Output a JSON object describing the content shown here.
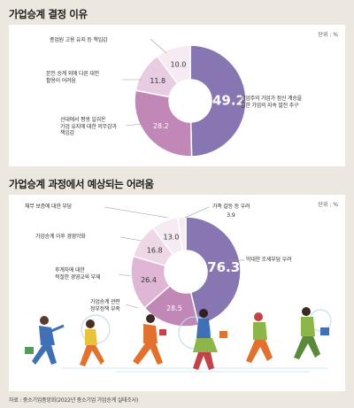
{
  "chart_data": [
    {
      "type": "pie",
      "title": "가업승계 결정 이유",
      "unit": "단위 : %",
      "slices": [
        {
          "label": "창업주의 가업가 정신 계승을 통한 가업의 지속 발전 추구",
          "label_lines": [
            "창업주의 가업가 정신 계승을",
            "통한 가업의 지속 발전 추구"
          ],
          "value": 49.2,
          "value_text": "49.2",
          "color": "#8876b3"
        },
        {
          "label": "선대에서 평생 일궈온 가업 유지에 대한 의무감과 책임감",
          "label_lines": [
            "선대에서 평생 일궈온",
            "가업 유지에 대한 의무감과",
            "책임감"
          ],
          "value": 28.2,
          "value_text": "28.2",
          "color": "#c087b7"
        },
        {
          "label": "본인 승계 외에 다른 대안 활용이 어려움",
          "label_lines": [
            "본인 승계 외에 다른 대안",
            "활용이 어려움"
          ],
          "value": 11.8,
          "value_text": "11.8",
          "color": "#e8cce1"
        },
        {
          "label": "종업원 고용 유지 등 책임감",
          "label_lines": [
            "종업원 고용 유지 등 책임감"
          ],
          "value": 10.0,
          "value_text": "10.0",
          "color": "#f6ebf3"
        }
      ]
    },
    {
      "type": "pie",
      "title": "가업승계 과정에서 예상되는 어려움",
      "unit": "단위 : %",
      "slices": [
        {
          "label": "막대한 조세부담 우려",
          "label_lines": [
            "막대한 조세부담 우려"
          ],
          "value": 76.3,
          "value_text": "76.3",
          "color": "#8876b3"
        },
        {
          "label": "가업승계 관련 정부정책 부족",
          "label_lines": [
            "가업승계 관련",
            "정부정책 부족"
          ],
          "value": 28.5,
          "value_text": "28.5",
          "color": "#c087b7"
        },
        {
          "label": "후계자에 대한 적절한 경영교육 부재",
          "label_lines": [
            "후계자에 대한",
            "적절한 경영교육 부재"
          ],
          "value": 26.4,
          "value_text": "26.4",
          "color": "#dfb6d5"
        },
        {
          "label": "가업승계 이후 경영악화",
          "label_lines": [
            "가업승계 이후 경영악화"
          ],
          "value": 16.8,
          "value_text": "16.8",
          "color": "#eed8e8"
        },
        {
          "label": "채무 보증에 대한 부담",
          "label_lines": [
            "채무 보증에 대한 부담"
          ],
          "value": 13.0,
          "value_text": "13.0",
          "color": "#f6ebf3"
        },
        {
          "label": "가족 갈등 등 우려",
          "label_lines": [
            "가족 갈등 등 우려"
          ],
          "value": 3.9,
          "value_text": "3.9",
          "color": "#f6ebf3"
        }
      ]
    }
  ],
  "source": "자료 : 중소기업중앙회(2022년 중소기업 가업승계 실태조사)"
}
